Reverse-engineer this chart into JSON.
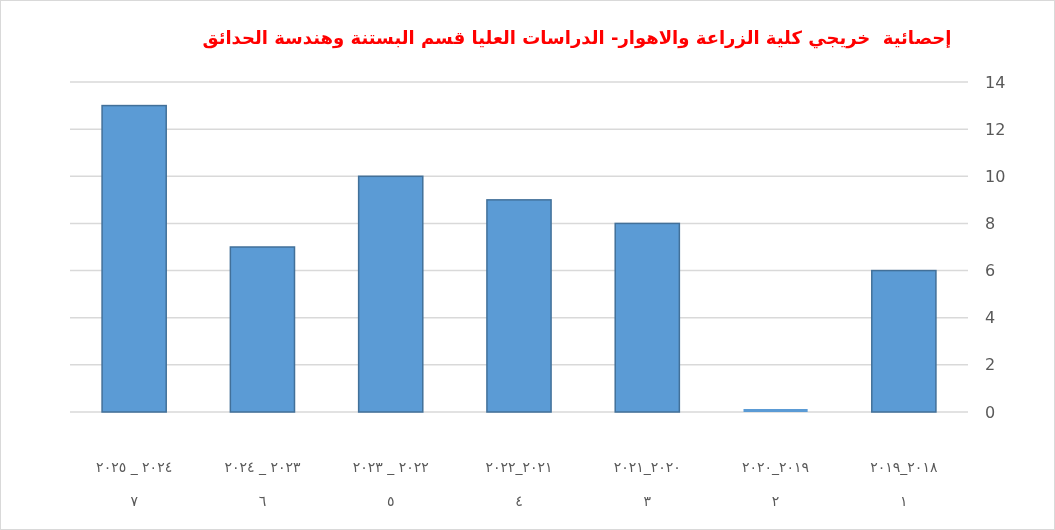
{
  "chart_data": {
    "type": "bar",
    "title": "إحصائية  خريجي كلية الزراعة والاهوار- الدراسات العليا قسم البستنة وهندسة الحدائق",
    "categories": [
      "٢٠٢٤ _ ٢٠٢٥\n٧",
      "٢٠٢٣ _ ٢٠٢٤\n٦",
      "٢٠٢٢ _ ٢٠٢٣\n٥",
      "٢٠٢١_٢٠٢٢\n٤",
      "٢٠٢٠_٢٠٢١\n٣",
      "٢٠١٩_٢٠٢٠\n٢",
      "٢٠١٨_٢٠١٩\n١"
    ],
    "values": [
      13,
      7,
      10,
      9,
      8,
      0,
      6
    ],
    "color": "#5b9bd5",
    "ylim": [
      0,
      14
    ],
    "yticks": [
      0,
      2,
      4,
      6,
      8,
      10,
      12,
      14
    ],
    "grid": "y"
  }
}
